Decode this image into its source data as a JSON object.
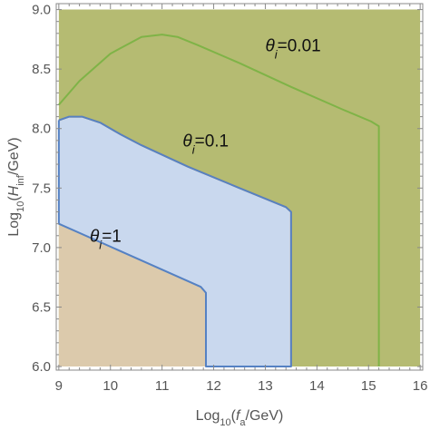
{
  "chart_data": {
    "type": "area",
    "title": "",
    "xlabel": {
      "main": "Log",
      "sub": "10",
      "pre": "(",
      "italic": "f",
      "italic_sub": "a",
      "post": "/GeV)"
    },
    "ylabel": {
      "main": "Log",
      "sub": "10",
      "pre": "(",
      "italic": "H",
      "italic_sub": "inf",
      "post": "/GeV)"
    },
    "xlim": [
      8.95,
      16.05
    ],
    "ylim": [
      5.97,
      9.05
    ],
    "xticks": [
      "9",
      "10",
      "11",
      "12",
      "13",
      "14",
      "15",
      "16"
    ],
    "yticks": [
      "6.0",
      "6.5",
      "7.0",
      "7.5",
      "8.0",
      "8.5",
      "9.0"
    ],
    "grid": false,
    "series": [
      {
        "label": {
          "theta": "θ",
          "sub": "i",
          "value": "=0.01"
        },
        "label_pos": [
          13.0,
          8.65
        ],
        "fill": "#b5bb72",
        "stroke": "#7fb347",
        "boundary": [
          [
            9.0,
            8.2
          ],
          [
            9.4,
            8.4
          ],
          [
            10.0,
            8.63
          ],
          [
            10.6,
            8.77
          ],
          [
            11.0,
            8.79
          ],
          [
            11.3,
            8.77
          ],
          [
            11.7,
            8.7
          ],
          [
            12.5,
            8.55
          ],
          [
            13.5,
            8.35
          ],
          [
            14.5,
            8.16
          ],
          [
            15.05,
            8.06
          ],
          [
            15.2,
            8.02
          ],
          [
            15.2,
            6.0
          ]
        ],
        "region": [
          [
            9.0,
            9.0
          ],
          [
            16.0,
            9.0
          ],
          [
            16.0,
            6.0
          ],
          [
            9.0,
            6.0
          ]
        ]
      },
      {
        "label": {
          "theta": "θ",
          "sub": "i",
          "value": "=0.1"
        },
        "label_pos": [
          11.4,
          7.85
        ],
        "fill": "#dccaac",
        "stroke": "#eba23f",
        "boundary": [
          [
            9.0,
            8.07
          ],
          [
            9.2,
            8.1
          ],
          [
            9.45,
            8.1
          ],
          [
            9.8,
            8.05
          ],
          [
            10.2,
            7.95
          ],
          [
            10.6,
            7.86
          ],
          [
            11.5,
            7.68
          ],
          [
            12.5,
            7.5
          ],
          [
            13.4,
            7.34
          ],
          [
            13.5,
            7.3
          ],
          [
            13.5,
            6.0
          ]
        ],
        "region": [
          [
            9.0,
            8.07
          ],
          [
            9.2,
            8.1
          ],
          [
            9.45,
            8.1
          ],
          [
            9.8,
            8.05
          ],
          [
            10.2,
            7.95
          ],
          [
            10.6,
            7.86
          ],
          [
            11.5,
            7.68
          ],
          [
            12.5,
            7.5
          ],
          [
            13.4,
            7.34
          ],
          [
            13.5,
            7.3
          ],
          [
            13.5,
            6.0
          ],
          [
            9.0,
            6.0
          ]
        ]
      },
      {
        "label": {
          "theta": "θ",
          "sub": "i",
          "value": "=1"
        },
        "label_pos": [
          9.6,
          7.05
        ],
        "fill": "#c9d8ee",
        "stroke": "#5581c3",
        "boundary": [
          [
            9.0,
            8.07
          ],
          [
            9.2,
            8.1
          ],
          [
            9.45,
            8.1
          ],
          [
            9.8,
            8.05
          ],
          [
            10.2,
            7.95
          ],
          [
            10.6,
            7.86
          ],
          [
            11.5,
            7.68
          ],
          [
            12.5,
            7.5
          ],
          [
            13.4,
            7.34
          ],
          [
            13.5,
            7.3
          ],
          [
            13.5,
            6.0
          ],
          [
            11.85,
            6.0
          ],
          [
            11.85,
            6.62
          ],
          [
            11.75,
            6.67
          ],
          [
            9.0,
            7.2
          ],
          [
            9.0,
            8.07
          ]
        ],
        "region": [
          [
            9.0,
            8.07
          ],
          [
            9.2,
            8.1
          ],
          [
            9.45,
            8.1
          ],
          [
            9.8,
            8.05
          ],
          [
            10.2,
            7.95
          ],
          [
            10.6,
            7.86
          ],
          [
            11.5,
            7.68
          ],
          [
            12.5,
            7.5
          ],
          [
            13.4,
            7.34
          ],
          [
            13.5,
            7.3
          ],
          [
            13.5,
            6.0
          ],
          [
            11.85,
            6.0
          ],
          [
            11.85,
            6.62
          ],
          [
            11.75,
            6.67
          ],
          [
            9.0,
            7.2
          ]
        ]
      }
    ]
  }
}
